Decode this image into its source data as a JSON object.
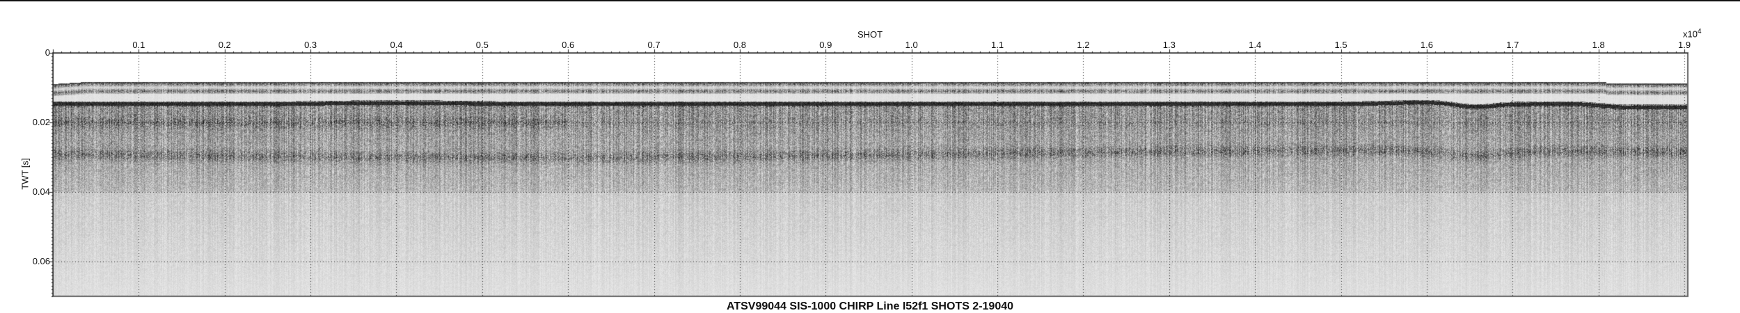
{
  "chart_data": {
    "type": "heatmap",
    "title": "ATSV99044 SIS-1000 CHIRP Line I52f1 SHOTS 2-19040",
    "xlabel": "SHOT",
    "ylabel": "TWT [s]",
    "x_multiplier": "x10",
    "x_multiplier_exp": "4",
    "xlim": [
      0,
      1.904
    ],
    "ylim": [
      0,
      0.07
    ],
    "y_reversed": true,
    "x_ticks": [
      "0.1",
      "0.2",
      "0.3",
      "0.4",
      "0.5",
      "0.6",
      "0.7",
      "0.8",
      "0.9",
      "1.0",
      "1.1",
      "1.2",
      "1.3",
      "1.4",
      "1.5",
      "1.6",
      "1.7",
      "1.8",
      "1.9"
    ],
    "y_ticks": [
      "0",
      "0.02",
      "0.04",
      "0.06"
    ],
    "x_axis_position": "top",
    "grid": true,
    "colormap": "grayscale",
    "colors": {
      "reflector": "#111111",
      "background": "#f2f2f2"
    }
  }
}
